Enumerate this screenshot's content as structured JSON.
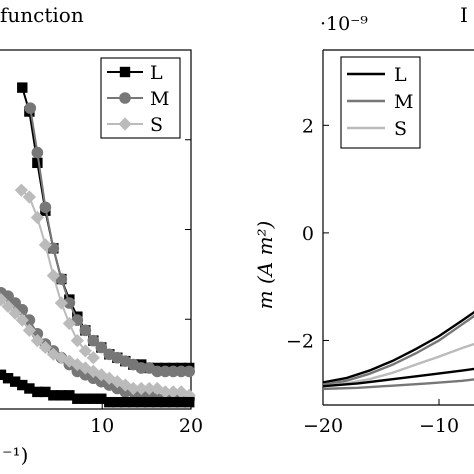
{
  "chart_data": [
    {
      "type": "line",
      "title": "function",
      "xlabel": "⁻¹)",
      "ylabel": "",
      "xlim": [
        -5,
        20
      ],
      "ylim": [
        0,
        1.05
      ],
      "x_ticks": [
        10,
        20
      ],
      "x_tick_labels": [
        "10",
        "20"
      ],
      "legend_position": "top-right",
      "legend": [
        "L",
        "M",
        "S"
      ],
      "series": [
        {
          "name": "L",
          "color": "#000000",
          "marker": "square",
          "x": [
            1,
            1.8,
            2.7,
            3.6,
            4.5,
            5.4,
            6.3,
            7.2,
            8.1,
            9,
            9.9,
            10.8,
            11.7,
            12.6,
            13.5,
            14.4,
            15.3,
            16.2,
            17.1,
            18,
            18.9,
            19.8
          ],
          "y": [
            0.94,
            0.87,
            0.72,
            0.58,
            0.47,
            0.38,
            0.32,
            0.27,
            0.23,
            0.2,
            0.18,
            0.16,
            0.15,
            0.14,
            0.13,
            0.13,
            0.12,
            0.12,
            0.12,
            0.12,
            0.12,
            0.12
          ]
        },
        {
          "name": "M",
          "color": "#777777",
          "marker": "circle",
          "x": [
            1.9,
            2.7,
            3.6,
            4.5,
            5.4,
            6.3,
            7.2,
            8.1,
            9,
            9.9,
            10.8,
            11.7,
            12.6,
            13.5,
            14.4,
            15.3,
            16.2,
            17.1,
            18,
            18.9,
            19.8
          ],
          "y": [
            0.88,
            0.75,
            0.59,
            0.47,
            0.38,
            0.31,
            0.26,
            0.23,
            0.2,
            0.18,
            0.16,
            0.15,
            0.14,
            0.13,
            0.12,
            0.12,
            0.11,
            0.11,
            0.11,
            0.11,
            0.11
          ]
        },
        {
          "name": "S",
          "color": "#bbbbbb",
          "marker": "diamond",
          "x": [
            0.9,
            1.8,
            2.7,
            3.6,
            4.5,
            5.4,
            6.3,
            7.2,
            8.1,
            9
          ],
          "y": [
            0.64,
            0.62,
            0.56,
            0.48,
            0.39,
            0.31,
            0.25,
            0.2,
            0.17,
            0.15
          ]
        },
        {
          "name": "",
          "color": "#777777",
          "marker": "circle",
          "x": [
            -3,
            -2.2,
            -1.4,
            -0.6,
            0.2,
            1,
            1.8,
            2.7,
            3.6,
            4.5,
            5.4,
            6.3,
            7.2,
            8.1,
            9,
            9.9,
            10.8,
            11.7,
            12.6,
            13.5,
            14.4,
            15.3,
            16.2,
            17.1,
            18,
            18.9,
            19.8
          ],
          "y": [
            0.38,
            0.36,
            0.34,
            0.33,
            0.31,
            0.29,
            0.26,
            0.22,
            0.19,
            0.17,
            0.15,
            0.13,
            0.11,
            0.1,
            0.09,
            0.08,
            0.07,
            0.06,
            0.05,
            0.05,
            0.04,
            0.04,
            0.03,
            0.03,
            0.03,
            0.03,
            0.03
          ]
        },
        {
          "name": "",
          "color": "#bbbbbb",
          "marker": "diamond",
          "x": [
            -3,
            -2.2,
            -1.4,
            -0.6,
            0.2,
            1,
            1.8,
            2.7,
            3.6,
            4.5,
            5.4,
            6.3,
            7.2,
            8.1,
            9,
            9.9,
            10.8,
            11.7,
            12.6,
            13.5,
            14.4,
            15.3,
            16.2,
            17.1,
            18,
            18.9,
            19.8
          ],
          "y": [
            0.36,
            0.34,
            0.32,
            0.3,
            0.28,
            0.26,
            0.23,
            0.2,
            0.18,
            0.16,
            0.15,
            0.14,
            0.13,
            0.12,
            0.11,
            0.1,
            0.09,
            0.08,
            0.07,
            0.06,
            0.06,
            0.06,
            0.06,
            0.05,
            0.05,
            0.05,
            0.04
          ]
        },
        {
          "name": "",
          "color": "#000000",
          "marker": "square",
          "x": [
            -3,
            -2.2,
            -1.4,
            -0.6,
            0.2,
            1,
            1.8,
            2.7,
            3.6,
            4.5,
            5.4,
            6.3,
            7.2,
            8.1,
            9,
            9.9,
            10.8,
            11.7,
            12.6,
            13.5,
            14.4,
            15.3,
            16.2,
            17.1,
            18,
            18.9,
            19.8
          ],
          "y": [
            0.13,
            0.11,
            0.1,
            0.09,
            0.08,
            0.07,
            0.06,
            0.05,
            0.05,
            0.04,
            0.04,
            0.04,
            0.03,
            0.03,
            0.03,
            0.03,
            0.02,
            0.02,
            0.02,
            0.02,
            0.02,
            0.02,
            0.02,
            0.02,
            0.02,
            0.02,
            0.02
          ]
        }
      ]
    },
    {
      "type": "line",
      "title": "I",
      "xlabel": "",
      "ylabel": "m (A m²)",
      "y_multiplier": "·10⁻⁹",
      "xlim": [
        -20,
        0
      ],
      "ylim": [
        -3.2,
        3.4
      ],
      "x_ticks": [
        -20,
        -10
      ],
      "x_tick_labels": [
        "−20",
        "−10"
      ],
      "y_ticks": [
        -2,
        0,
        2
      ],
      "y_tick_labels": [
        "−2",
        "0",
        "2"
      ],
      "legend_position": "top-left",
      "legend": [
        "L",
        "M",
        "S"
      ],
      "series": [
        {
          "name": "L",
          "color": "#000000",
          "x": [
            -20,
            -18,
            -16,
            -14,
            -12,
            -10,
            -8,
            -6,
            -5,
            -4.2
          ],
          "y": [
            -2.78,
            -2.7,
            -2.56,
            -2.38,
            -2.16,
            -1.92,
            -1.63,
            -1.33,
            -1.18,
            -1.05
          ]
        },
        {
          "name": "M",
          "color": "#777777",
          "x": [
            -20,
            -18,
            -16,
            -14,
            -12,
            -10,
            -8,
            -6,
            -5,
            -4.2
          ],
          "y": [
            -2.82,
            -2.75,
            -2.62,
            -2.45,
            -2.24,
            -2.0,
            -1.7,
            -1.4,
            -1.25,
            -1.1
          ]
        },
        {
          "name": "S",
          "color": "#bbbbbb",
          "x": [
            -20,
            -18,
            -16,
            -14,
            -12,
            -10,
            -8,
            -6,
            -5,
            -4.2
          ],
          "y": [
            -2.85,
            -2.8,
            -2.72,
            -2.6,
            -2.45,
            -2.3,
            -2.14,
            -2.0,
            -1.9,
            -1.82
          ]
        },
        {
          "name": "",
          "color": "#000000",
          "x": [
            -20,
            -17,
            -14,
            -11,
            -8,
            -6,
            -4.2
          ],
          "y": [
            -2.85,
            -2.8,
            -2.72,
            -2.64,
            -2.56,
            -2.5,
            -2.42
          ]
        },
        {
          "name": "",
          "color": "#777777",
          "x": [
            -20,
            -17,
            -14,
            -11,
            -8,
            -6,
            -4.2
          ],
          "y": [
            -2.9,
            -2.88,
            -2.84,
            -2.8,
            -2.75,
            -2.7,
            -2.65
          ]
        }
      ]
    }
  ]
}
